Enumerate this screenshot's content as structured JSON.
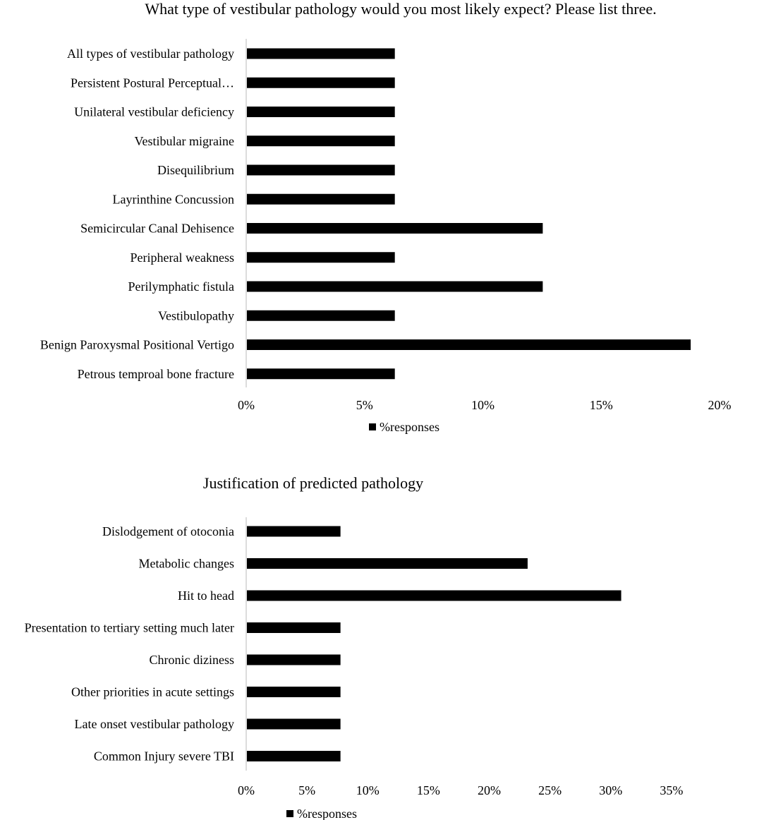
{
  "chart_data": [
    {
      "type": "bar",
      "orientation": "horizontal",
      "title": "What type of vestibular pathology would you most likely expect? Please list three.",
      "categories": [
        "All types of vestibular pathology",
        "Persistent Postural Perceptual…",
        "Unilateral vestibular deficiency",
        "Vestibular migraine",
        "Disequilibrium",
        "Layrinthine Concussion",
        "Semicircular Canal Dehisence",
        "Peripheral weakness",
        "Perilymphatic fistula",
        "Vestibulopathy",
        "Benign Paroxysmal Positional Vertigo",
        "Petrous temproal bone fracture"
      ],
      "series": [
        {
          "name": "%responses",
          "values": [
            6.25,
            6.25,
            6.25,
            6.25,
            6.25,
            6.25,
            12.5,
            6.25,
            12.5,
            6.25,
            18.75,
            6.25
          ]
        }
      ],
      "xlim": [
        0,
        20
      ],
      "ticks": [
        0,
        5,
        10,
        15,
        20
      ],
      "tick_labels": [
        "0%",
        "5%",
        "10%",
        "15%",
        "20%"
      ],
      "legend_position": "bottom",
      "grid": false,
      "bar_color": "#000000"
    },
    {
      "type": "bar",
      "orientation": "horizontal",
      "title": "Justification of predicted pathology",
      "categories": [
        "Dislodgement of otoconia",
        "Metabolic changes",
        "Hit to head",
        "Presentation to tertiary setting much later",
        "Chronic diziness",
        "Other priorities in acute settings",
        "Late onset vestibular pathology",
        "Common Injury severe TBI"
      ],
      "series": [
        {
          "name": "%responses",
          "values": [
            7.7,
            23.1,
            30.8,
            7.7,
            7.7,
            7.7,
            7.7,
            7.7
          ]
        }
      ],
      "xlim": [
        0,
        40
      ],
      "ticks": [
        0,
        5,
        10,
        15,
        20,
        25,
        30,
        35
      ],
      "tick_labels": [
        "0%",
        "5%",
        "10%",
        "15%",
        "20%",
        "25%",
        "30%",
        "35%"
      ],
      "legend_position": "bottom",
      "grid": false,
      "bar_color": "#000000"
    }
  ]
}
